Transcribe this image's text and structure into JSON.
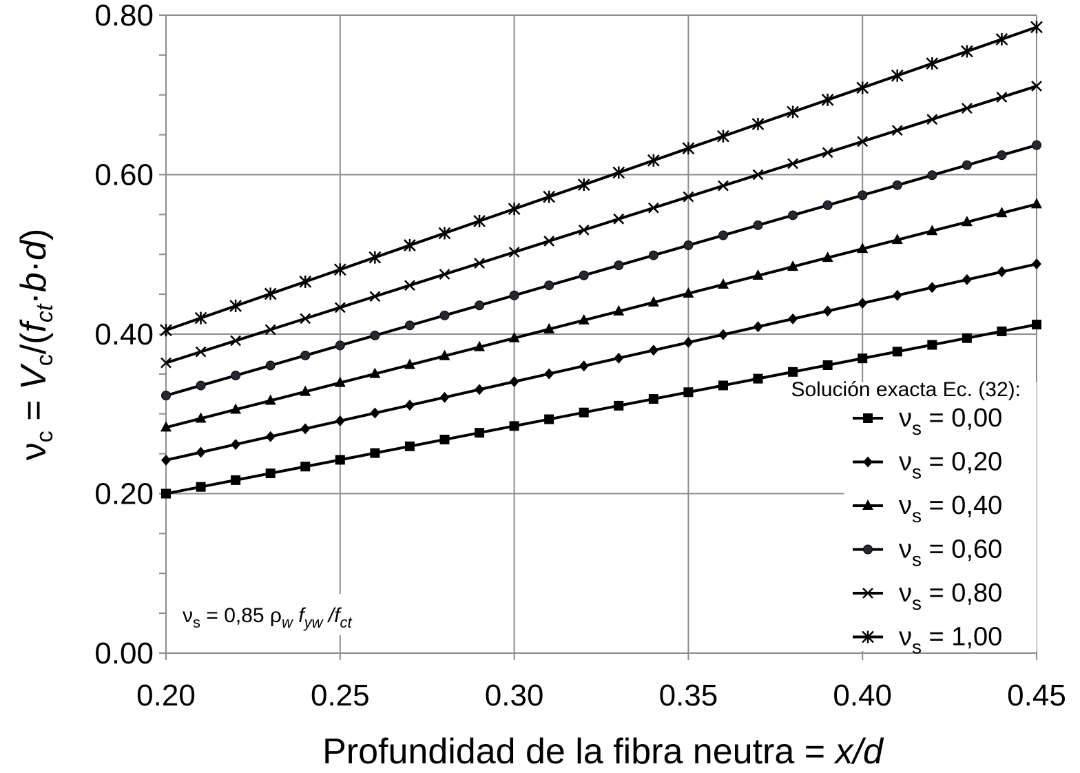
{
  "chart_data": {
    "type": "line",
    "xlabel_prefix": "Profundidad de la fibra neutra = ",
    "xlabel_var": "x/d",
    "ylabel": {
      "nu": "ν",
      "sub_c": "c",
      "eq": " = ",
      "V": "V",
      "slash_paren": "/(",
      "f": "f",
      "sub_ct": "ct",
      "dot": "·",
      "b": "b",
      "d": "d",
      "close": ")"
    },
    "xlim": [
      0.2,
      0.45
    ],
    "ylim": [
      0.0,
      0.8
    ],
    "x_ticks": [
      "0.20",
      "0.25",
      "0.30",
      "0.35",
      "0.40",
      "0.45"
    ],
    "y_ticks": [
      "0.00",
      "0.20",
      "0.40",
      "0.60",
      "0.80"
    ],
    "grid": true,
    "legend": {
      "title": "Solución exacta Ec. (32):",
      "placement": "bottom-right"
    },
    "note": {
      "nu": "ν",
      "sub_s": "s",
      "eq": " = 0,85 ",
      "rho": "ρ",
      "sub_w": "w",
      "f1": " f",
      "sub_yw": "yw",
      "slash": " /f",
      "sub_ct": "ct"
    },
    "x": [
      0.2,
      0.21,
      0.22,
      0.23,
      0.24,
      0.25,
      0.26,
      0.27,
      0.28,
      0.29,
      0.3,
      0.31,
      0.32,
      0.33,
      0.34,
      0.35,
      0.36,
      0.37,
      0.38,
      0.39,
      0.4,
      0.41,
      0.42,
      0.43,
      0.44,
      0.45
    ],
    "series": [
      {
        "name": "0,00",
        "marker": "square",
        "y0": 0.2,
        "y1": 0.412
      },
      {
        "name": "0,20",
        "marker": "diamond",
        "y0": 0.242,
        "y1": 0.488
      },
      {
        "name": "0,40",
        "marker": "triangle",
        "y0": 0.283,
        "y1": 0.563
      },
      {
        "name": "0,60",
        "marker": "circle",
        "y0": 0.323,
        "y1": 0.637
      },
      {
        "name": "0,80",
        "marker": "x",
        "y0": 0.364,
        "y1": 0.711
      },
      {
        "name": "1,00",
        "marker": "star",
        "y0": 0.405,
        "y1": 0.785
      }
    ],
    "legend_prefix": "ν",
    "legend_sub": "s",
    "legend_eq": " = "
  }
}
